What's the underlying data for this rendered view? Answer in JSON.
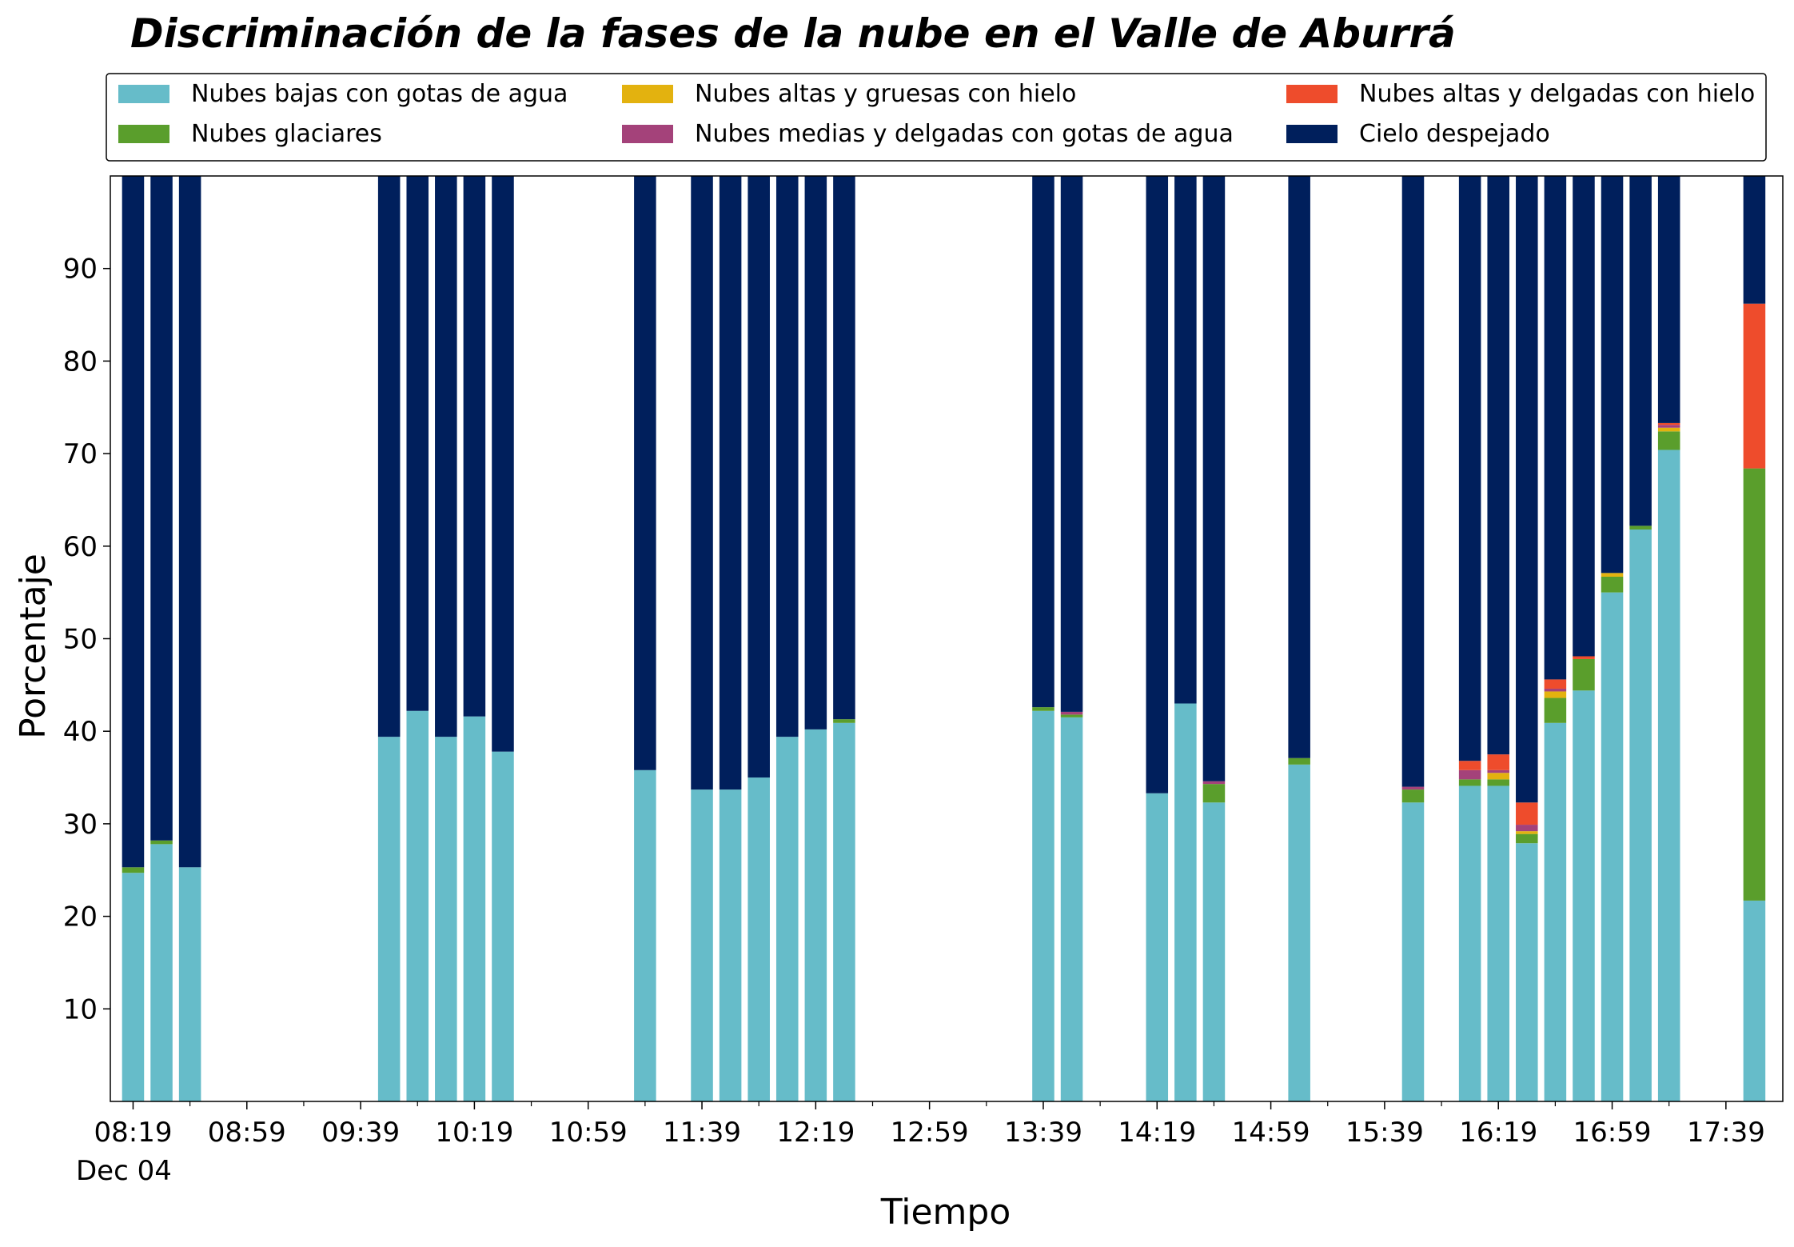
{
  "chart_data": {
    "type": "bar",
    "stacked": true,
    "title": "Discriminación de la fases de la nube en el Valle de Aburrá",
    "xlabel": "Tiempo",
    "ylabel": "Porcentaje",
    "ylim": [
      0,
      100
    ],
    "y_ticks": [
      "10",
      "20",
      "30",
      "40",
      "50",
      "60",
      "70",
      "80",
      "90"
    ],
    "x_tick_labels": [
      "08:19",
      "08:59",
      "09:39",
      "10:19",
      "10:59",
      "11:39",
      "12:19",
      "12:59",
      "13:39",
      "14:19",
      "14:59",
      "15:39",
      "16:19",
      "16:59",
      "17:39"
    ],
    "x_date_label": "Dec 04",
    "x_range": [
      "08:11",
      "17:59"
    ],
    "bar_width_minutes": 9,
    "legend_position": "top",
    "grid": false,
    "series": [
      {
        "name": "Nubes bajas con gotas de agua",
        "color": "#66bcc9"
      },
      {
        "name": "Nubes glaciares",
        "color": "#5a9e2c"
      },
      {
        "name": "Nubes altas y gruesas con hielo",
        "color": "#e3b20f"
      },
      {
        "name": "Nubes medias y delgadas con gotas de agua",
        "color": "#a4427a"
      },
      {
        "name": "Nubes altas y delgadas con hielo",
        "color": "#ee4c2c"
      },
      {
        "name": "Cielo despejado",
        "color": "#001f5c"
      }
    ],
    "legend_order": [
      0,
      1,
      2,
      3,
      4,
      5
    ],
    "bars": [
      {
        "time": "08:19",
        "values": [
          24.7,
          0.6,
          0,
          0,
          0,
          74.7
        ]
      },
      {
        "time": "08:29",
        "values": [
          27.8,
          0.4,
          0,
          0,
          0,
          71.8
        ]
      },
      {
        "time": "08:39",
        "values": [
          25.3,
          0,
          0,
          0,
          0,
          74.7
        ]
      },
      {
        "time": "09:49",
        "values": [
          39.4,
          0,
          0,
          0,
          0,
          60.6
        ]
      },
      {
        "time": "09:59",
        "values": [
          42.2,
          0,
          0,
          0,
          0,
          57.8
        ]
      },
      {
        "time": "10:09",
        "values": [
          39.4,
          0,
          0,
          0,
          0,
          60.6
        ]
      },
      {
        "time": "10:19",
        "values": [
          41.6,
          0,
          0,
          0,
          0,
          58.4
        ]
      },
      {
        "time": "10:29",
        "values": [
          37.8,
          0,
          0,
          0,
          0,
          62.2
        ]
      },
      {
        "time": "11:19",
        "values": [
          35.8,
          0,
          0,
          0,
          0,
          64.2
        ]
      },
      {
        "time": "11:39",
        "values": [
          33.7,
          0,
          0,
          0,
          0,
          66.3
        ]
      },
      {
        "time": "11:49",
        "values": [
          33.7,
          0,
          0,
          0,
          0,
          66.3
        ]
      },
      {
        "time": "11:59",
        "values": [
          35.0,
          0,
          0,
          0,
          0,
          65.0
        ]
      },
      {
        "time": "12:09",
        "values": [
          39.4,
          0,
          0,
          0,
          0,
          60.6
        ]
      },
      {
        "time": "12:19",
        "values": [
          40.2,
          0,
          0,
          0,
          0,
          59.8
        ]
      },
      {
        "time": "12:29",
        "values": [
          40.9,
          0.4,
          0,
          0,
          0,
          58.7
        ]
      },
      {
        "time": "13:39",
        "values": [
          42.2,
          0.4,
          0,
          0,
          0,
          57.4
        ]
      },
      {
        "time": "13:49",
        "values": [
          41.5,
          0.3,
          0,
          0.3,
          0,
          57.9
        ]
      },
      {
        "time": "14:19",
        "values": [
          33.3,
          0,
          0,
          0,
          0,
          66.7
        ]
      },
      {
        "time": "14:29",
        "values": [
          43.0,
          0,
          0,
          0,
          0,
          57.0
        ]
      },
      {
        "time": "14:39",
        "values": [
          32.3,
          2.0,
          0,
          0.3,
          0,
          65.4
        ]
      },
      {
        "time": "15:09",
        "values": [
          36.4,
          0.7,
          0,
          0,
          0,
          62.9
        ]
      },
      {
        "time": "15:49",
        "values": [
          32.3,
          1.4,
          0,
          0.3,
          0,
          66.0
        ]
      },
      {
        "time": "16:09",
        "values": [
          34.1,
          0.7,
          0,
          1.0,
          1.0,
          63.2
        ]
      },
      {
        "time": "16:19",
        "values": [
          34.1,
          0.7,
          0.7,
          0.3,
          1.7,
          62.5
        ]
      },
      {
        "time": "16:29",
        "values": [
          27.9,
          1.0,
          0.3,
          0.7,
          2.4,
          67.7
        ]
      },
      {
        "time": "16:39",
        "values": [
          40.9,
          2.7,
          0.7,
          0.3,
          1.0,
          54.4
        ]
      },
      {
        "time": "16:49",
        "values": [
          44.4,
          3.4,
          0,
          0,
          0.3,
          51.9
        ]
      },
      {
        "time": "16:59",
        "values": [
          55.0,
          1.7,
          0.4,
          0,
          0,
          42.9
        ]
      },
      {
        "time": "17:09",
        "values": [
          61.8,
          0.4,
          0,
          0,
          0,
          37.8
        ]
      },
      {
        "time": "17:19",
        "values": [
          70.4,
          2.0,
          0.4,
          0.3,
          0.2,
          26.7
        ]
      },
      {
        "time": "17:49",
        "values": [
          21.7,
          46.7,
          0,
          0,
          17.8,
          13.8
        ]
      }
    ]
  }
}
